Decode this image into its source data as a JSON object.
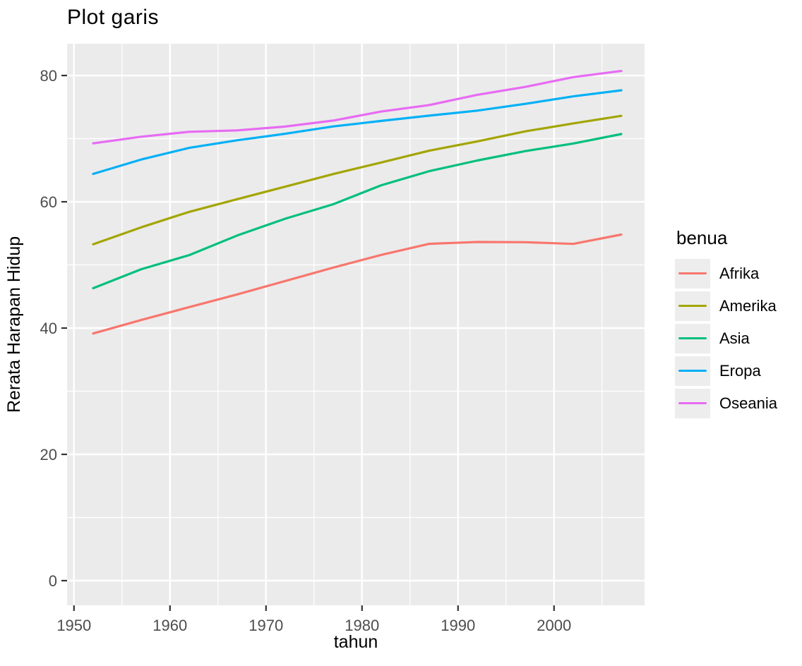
{
  "title": "Plot garis",
  "chart_data": {
    "type": "line",
    "title": "Plot garis",
    "xlabel": "tahun",
    "ylabel": "Rerata Harapan Hidup",
    "legend_title": "benua",
    "legend_position": "right",
    "grid": true,
    "panel_bg": "#EBEBEB",
    "grid_color": "#FFFFFF",
    "tick_label_color": "#4d4d4d",
    "tick_mark_color": "#333333",
    "xlim": [
      1949.28,
      2009.43
    ],
    "ylim": [
      -3.91,
      85.03
    ],
    "x_ticks": [
      1950,
      1960,
      1970,
      1980,
      1990,
      2000
    ],
    "x_minor_ticks": [
      1955,
      1965,
      1975,
      1985,
      1995,
      2005
    ],
    "y_ticks": [
      0,
      20,
      40,
      60,
      80
    ],
    "y_minor_ticks": [
      10,
      30,
      50,
      70
    ],
    "x": [
      1952,
      1957,
      1962,
      1967,
      1972,
      1977,
      1982,
      1987,
      1992,
      1997,
      2002,
      2007
    ],
    "series": [
      {
        "name": "Afrika",
        "color": "#F8766D",
        "values": [
          39.14,
          41.27,
          43.32,
          45.33,
          47.45,
          49.58,
          51.59,
          53.34,
          53.63,
          53.6,
          53.33,
          54.81
        ]
      },
      {
        "name": "Amerika",
        "color": "#A3A500",
        "values": [
          53.28,
          55.96,
          58.4,
          60.41,
          62.39,
          64.39,
          66.23,
          68.09,
          69.57,
          71.15,
          72.42,
          73.61
        ]
      },
      {
        "name": "Asia",
        "color": "#00BF7D",
        "values": [
          46.31,
          49.32,
          51.56,
          54.66,
          57.32,
          59.61,
          62.62,
          64.85,
          66.54,
          68.02,
          69.23,
          70.73
        ]
      },
      {
        "name": "Eropa",
        "color": "#00B0F6",
        "values": [
          64.41,
          66.7,
          68.54,
          69.74,
          70.77,
          71.94,
          72.81,
          73.64,
          74.44,
          75.51,
          76.7,
          77.65
        ]
      },
      {
        "name": "Oseania",
        "color": "#E76BF3",
        "values": [
          69.25,
          70.3,
          71.09,
          71.31,
          71.91,
          72.86,
          74.29,
          75.32,
          76.94,
          78.19,
          79.74,
          80.72
        ]
      }
    ]
  }
}
